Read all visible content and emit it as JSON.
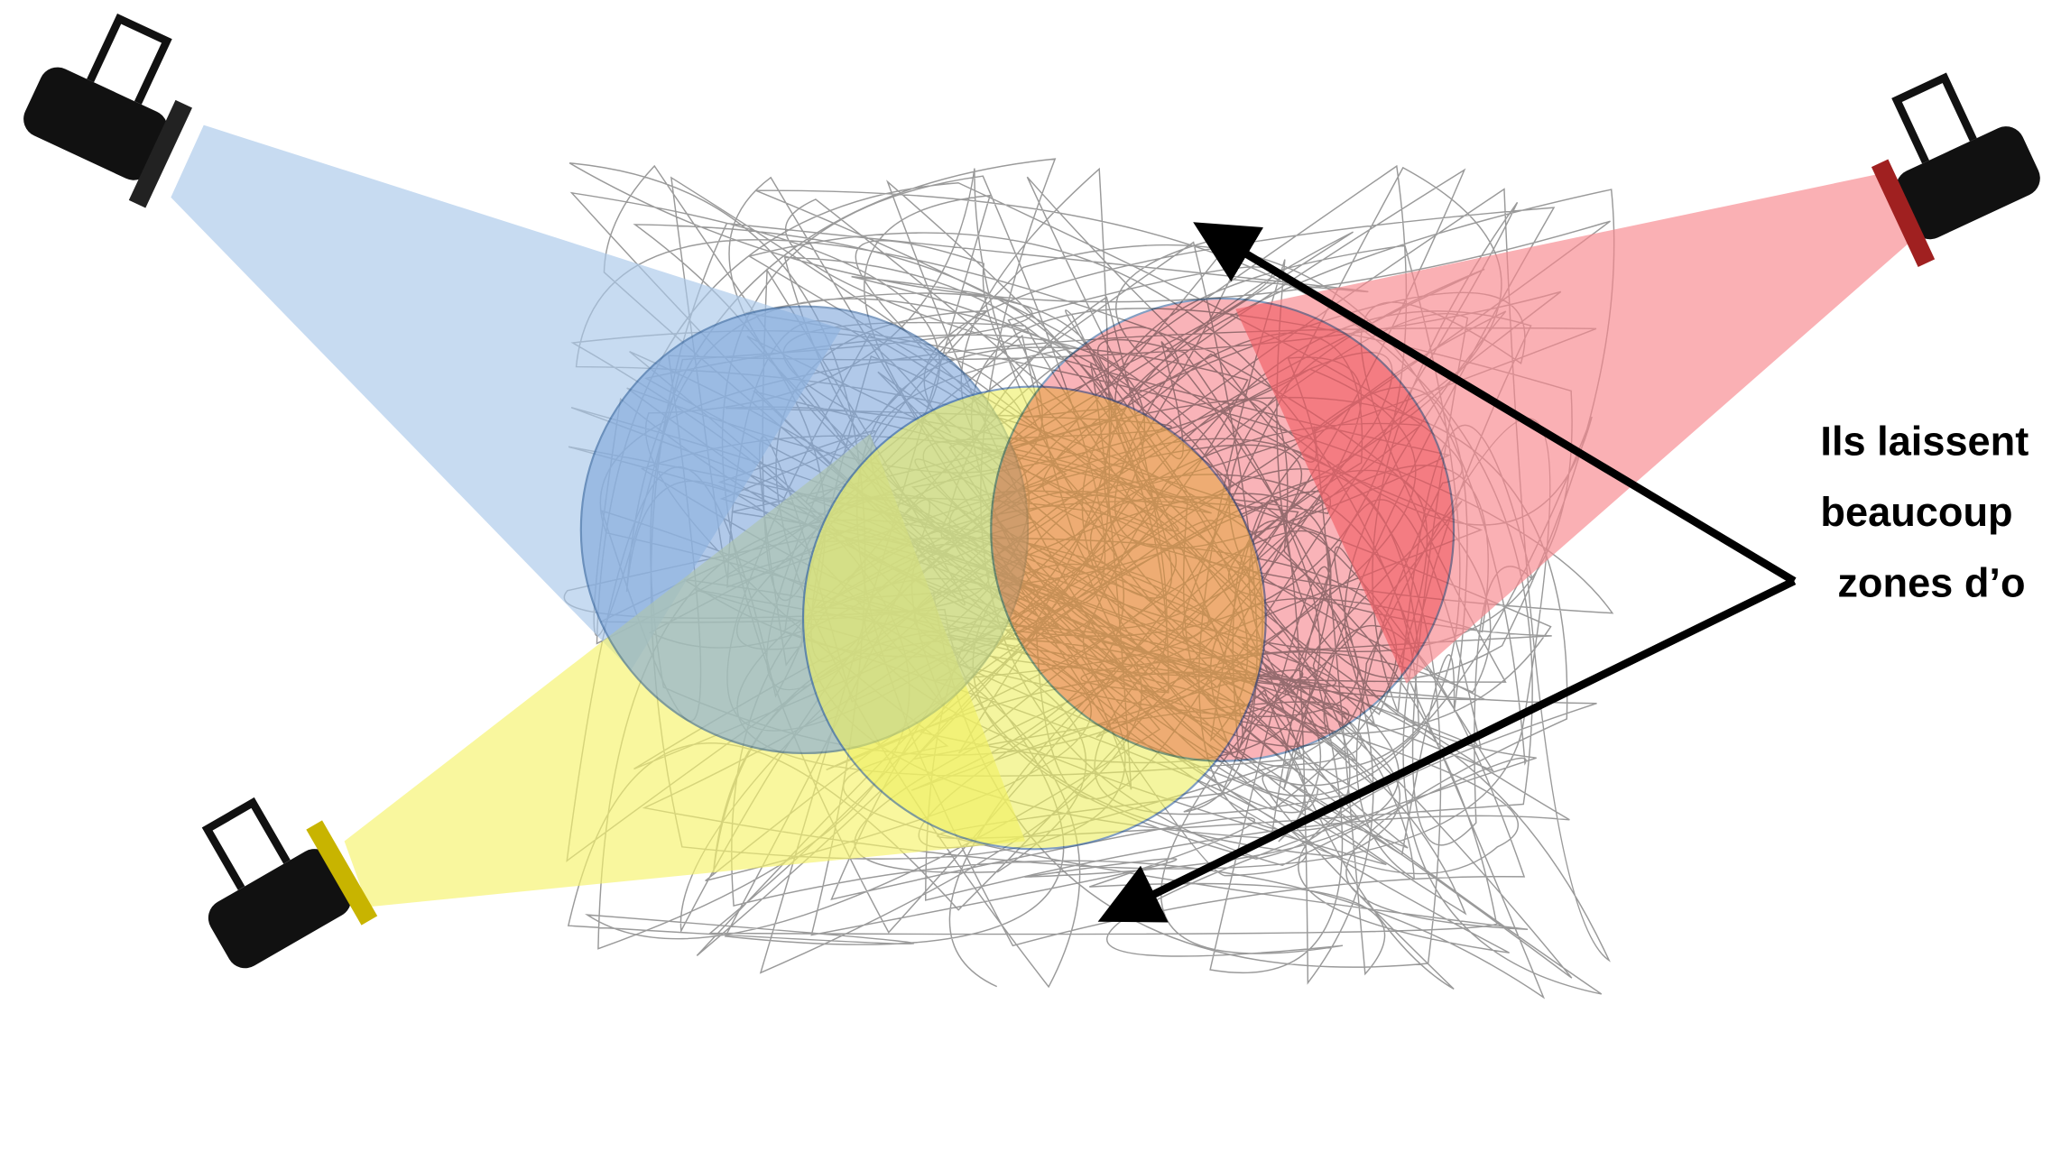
{
  "annotation": {
    "lines": [
      "Ils laissent",
      "beaucoup",
      "zones d’o"
    ]
  }
}
